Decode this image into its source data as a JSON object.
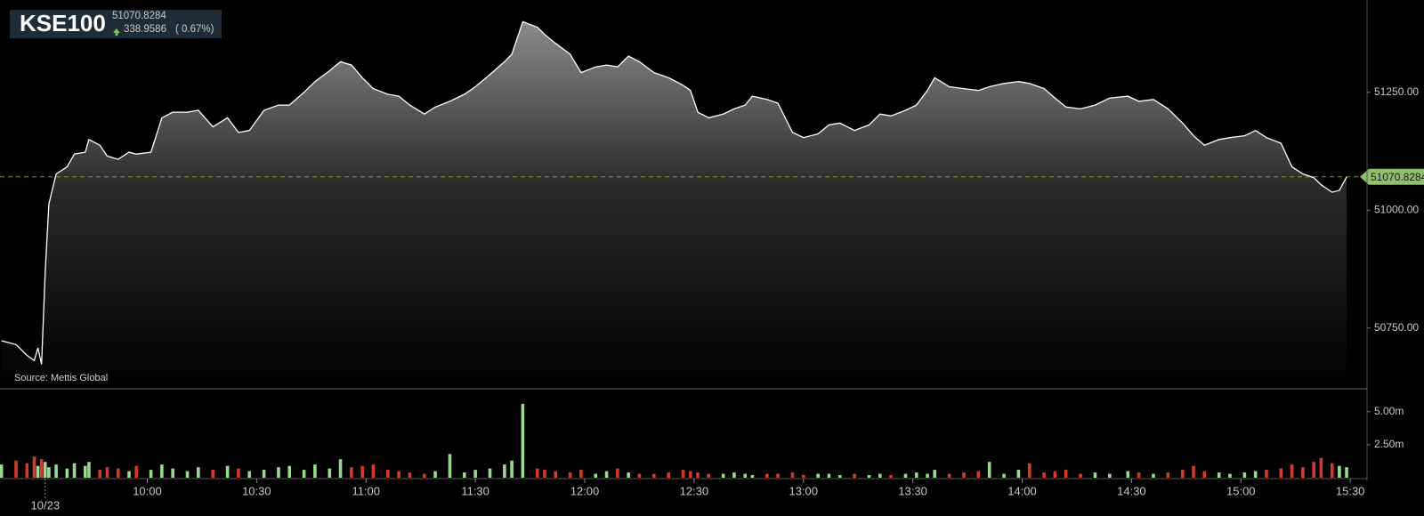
{
  "header": {
    "title": "KSE100",
    "value": "51070.8284",
    "change": "338.9586",
    "change_pct": "( 0.67%)"
  },
  "chart_data": [
    {
      "type": "area",
      "source": "Source: Mettis Global",
      "color": "#ffffff",
      "last_line_color": "#8fbf6f",
      "xlim": [
        559.6,
        934.6
      ],
      "ylim": [
        50623,
        51446
      ],
      "yticks": [
        {
          "value": 50750,
          "label": "50750.00"
        },
        {
          "value": 51000,
          "label": "51000.00"
        },
        {
          "value": 51250,
          "label": "51250.00"
        }
      ],
      "x": [
        560,
        564,
        567,
        569,
        570,
        571,
        572,
        573,
        575,
        578,
        580,
        583,
        584,
        587,
        589,
        592,
        595,
        597,
        601,
        604,
        607,
        611,
        614,
        618,
        622,
        625,
        628,
        632,
        636,
        639,
        643,
        646,
        650,
        653,
        656,
        659,
        662,
        666,
        669,
        672,
        676,
        679,
        683,
        687,
        690,
        694,
        698,
        700,
        703,
        707,
        709,
        712,
        716,
        719,
        723,
        726,
        729,
        732,
        735,
        739,
        743,
        747,
        749,
        751,
        754,
        758,
        761,
        764,
        766,
        770,
        773,
        777,
        780,
        784,
        787,
        790,
        794,
        798,
        801,
        804,
        808,
        811,
        814,
        816,
        820,
        824,
        828,
        831,
        835,
        839,
        842,
        846,
        849,
        852,
        856,
        860,
        864,
        869,
        872,
        876,
        880,
        884,
        887,
        890,
        894,
        897,
        901,
        904,
        907,
        911,
        914,
        917,
        920,
        922,
        925,
        927,
        929
      ],
      "values": [
        50723,
        50715,
        50692,
        50681,
        50708,
        50673,
        50869,
        51013,
        51077,
        51092,
        51119,
        51123,
        51150,
        51138,
        51115,
        51108,
        51123,
        51119,
        51123,
        51196,
        51208,
        51208,
        51212,
        51177,
        51196,
        51165,
        51169,
        51212,
        51223,
        51223,
        51250,
        51273,
        51296,
        51315,
        51308,
        51281,
        51258,
        51246,
        51242,
        51223,
        51204,
        51219,
        51231,
        51246,
        51262,
        51288,
        51315,
        51331,
        51400,
        51388,
        51373,
        51354,
        51331,
        51292,
        51304,
        51308,
        51304,
        51327,
        51315,
        51292,
        51281,
        51265,
        51254,
        51208,
        51196,
        51204,
        51215,
        51223,
        51242,
        51235,
        51227,
        51165,
        51154,
        51162,
        51181,
        51185,
        51169,
        51181,
        51204,
        51200,
        51212,
        51223,
        51254,
        51281,
        51262,
        51258,
        51254,
        51262,
        51269,
        51273,
        51269,
        51258,
        51238,
        51219,
        51215,
        51223,
        51238,
        51242,
        51231,
        51235,
        51215,
        51185,
        51158,
        51138,
        51150,
        51154,
        51158,
        51169,
        51154,
        51142,
        51092,
        51077,
        51069,
        51054,
        51038,
        51042,
        51070.8284
      ]
    },
    {
      "type": "bar",
      "up_color": "#9bd88f",
      "down_color": "#d23b2a",
      "xlim": [
        559.6,
        934.6
      ],
      "ylim": [
        0,
        6.67
      ],
      "yticks": [
        {
          "value": 2.5,
          "label": "2.50m"
        },
        {
          "value": 5,
          "label": "5.00m"
        }
      ],
      "xticks": [
        {
          "value": 572,
          "label": "10/23"
        },
        {
          "value": 600,
          "label": "10:00"
        },
        {
          "value": 630,
          "label": "10:30"
        },
        {
          "value": 660,
          "label": "11:00"
        },
        {
          "value": 690,
          "label": "11:30"
        },
        {
          "value": 720,
          "label": "12:00"
        },
        {
          "value": 750,
          "label": "12:30"
        },
        {
          "value": 780,
          "label": "13:00"
        },
        {
          "value": 810,
          "label": "13:30"
        },
        {
          "value": 840,
          "label": "14:00"
        },
        {
          "value": 870,
          "label": "14:30"
        },
        {
          "value": 900,
          "label": "15:00"
        },
        {
          "value": 930,
          "label": "15:30"
        }
      ],
      "values": [
        1.0,
        1.3,
        1.1,
        1.6,
        0.9,
        1.4,
        1.2,
        0.8,
        1.0,
        0.7,
        1.1,
        0.9,
        1.2,
        0.6,
        0.8,
        0.7,
        0.5,
        0.9,
        0.6,
        1.0,
        0.7,
        0.5,
        0.8,
        0.6,
        0.9,
        0.7,
        0.5,
        0.6,
        0.8,
        0.9,
        0.6,
        1.0,
        0.7,
        1.4,
        0.8,
        0.9,
        1.0,
        0.6,
        0.5,
        0.4,
        0.3,
        0.5,
        1.8,
        0.4,
        0.6,
        0.7,
        1.0,
        1.3,
        5.6,
        0.7,
        0.6,
        0.5,
        0.4,
        0.6,
        0.3,
        0.5,
        0.7,
        0.4,
        0.3,
        0.3,
        0.4,
        0.6,
        0.5,
        0.4,
        0.3,
        0.3,
        0.4,
        0.3,
        0.2,
        0.3,
        0.3,
        0.4,
        0.2,
        0.3,
        0.3,
        0.2,
        0.3,
        0.2,
        0.3,
        0.2,
        0.3,
        0.4,
        0.3,
        0.6,
        0.3,
        0.4,
        0.5,
        1.2,
        0.3,
        0.6,
        1.1,
        0.4,
        0.5,
        0.6,
        0.3,
        0.4,
        0.3,
        0.5,
        0.4,
        0.3,
        0.4,
        0.6,
        0.9,
        0.5,
        0.4,
        0.3,
        0.4,
        0.5,
        0.6,
        0.7,
        1.0,
        0.8,
        1.2,
        1.5,
        1.1,
        0.9,
        0.8
      ]
    }
  ]
}
